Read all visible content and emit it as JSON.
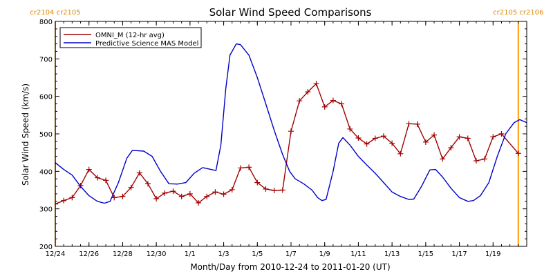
{
  "chart_data": {
    "type": "line",
    "title": "Solar Wind Speed Comparisons",
    "xlabel": "Month/Day from 2010-12-24 to 2011-01-20 (UT)",
    "ylabel": "Solar Wind Speed (km/s)",
    "xlim": [
      "2010-12-24T00:00",
      "2011-01-21T00:00"
    ],
    "ylim": [
      200,
      800
    ],
    "x_tick_labels": [
      {
        "label": "12/24",
        "date": "2010-12-24"
      },
      {
        "label": "12/26",
        "date": "2010-12-26"
      },
      {
        "label": "12/28",
        "date": "2010-12-28"
      },
      {
        "label": "12/30",
        "date": "2010-12-30"
      },
      {
        "label": "1/1",
        "date": "2011-01-01"
      },
      {
        "label": "1/3",
        "date": "2011-01-03"
      },
      {
        "label": "1/5",
        "date": "2011-01-05"
      },
      {
        "label": "1/7",
        "date": "2011-01-07"
      },
      {
        "label": "1/9",
        "date": "2011-01-09"
      },
      {
        "label": "1/11",
        "date": "2011-01-11"
      },
      {
        "label": "1/13",
        "date": "2011-01-13"
      },
      {
        "label": "1/15",
        "date": "2011-01-15"
      },
      {
        "label": "1/17",
        "date": "2011-01-17"
      },
      {
        "label": "1/19",
        "date": "2011-01-19"
      }
    ],
    "y_ticks": [
      200,
      300,
      400,
      500,
      600,
      700,
      800
    ],
    "legend_position": "top-left",
    "grid": false,
    "carrington_markers": [
      {
        "date": "2010-12-24T00:00",
        "label": "cr2104 cr2105"
      },
      {
        "date": "2011-01-20T12:00",
        "label": "cr2105 cr2106"
      }
    ],
    "series": [
      {
        "name": "OMNI_M (12-hr avg)",
        "color": "#a00000",
        "marker": "plus",
        "points": [
          [
            "2010-12-24T00:00",
            313
          ],
          [
            "2010-12-24T12:00",
            322
          ],
          [
            "2010-12-25T00:00",
            330
          ],
          [
            "2010-12-25T12:00",
            362
          ],
          [
            "2010-12-26T00:00",
            405
          ],
          [
            "2010-12-26T12:00",
            383
          ],
          [
            "2010-12-27T00:00",
            376
          ],
          [
            "2010-12-27T12:00",
            330
          ],
          [
            "2010-12-28T00:00",
            333
          ],
          [
            "2010-12-28T12:00",
            357
          ],
          [
            "2010-12-29T00:00",
            396
          ],
          [
            "2010-12-29T12:00",
            367
          ],
          [
            "2010-12-30T00:00",
            327
          ],
          [
            "2010-12-30T12:00",
            342
          ],
          [
            "2010-12-31T00:00",
            347
          ],
          [
            "2010-12-31T12:00",
            333
          ],
          [
            "2011-01-01T00:00",
            340
          ],
          [
            "2011-01-01T12:00",
            316
          ],
          [
            "2011-01-02T00:00",
            333
          ],
          [
            "2011-01-02T12:00",
            345
          ],
          [
            "2011-01-03T00:00",
            339
          ],
          [
            "2011-01-03T12:00",
            351
          ],
          [
            "2011-01-04T00:00",
            409
          ],
          [
            "2011-01-04T12:00",
            411
          ],
          [
            "2011-01-05T00:00",
            370
          ],
          [
            "2011-01-05T12:00",
            353
          ],
          [
            "2011-01-06T00:00",
            349
          ],
          [
            "2011-01-06T12:00",
            350
          ],
          [
            "2011-01-07T00:00",
            507
          ],
          [
            "2011-01-07T12:00",
            588
          ],
          [
            "2011-01-08T00:00",
            612
          ],
          [
            "2011-01-08T12:00",
            634
          ],
          [
            "2011-01-09T00:00",
            572
          ],
          [
            "2011-01-09T12:00",
            589
          ],
          [
            "2011-01-10T00:00",
            580
          ],
          [
            "2011-01-10T12:00",
            513
          ],
          [
            "2011-01-11T00:00",
            489
          ],
          [
            "2011-01-11T12:00",
            473
          ],
          [
            "2011-01-12T00:00",
            488
          ],
          [
            "2011-01-12T12:00",
            494
          ],
          [
            "2011-01-13T00:00",
            475
          ],
          [
            "2011-01-13T12:00",
            447
          ],
          [
            "2011-01-14T00:00",
            527
          ],
          [
            "2011-01-14T12:00",
            526
          ],
          [
            "2011-01-15T00:00",
            478
          ],
          [
            "2011-01-15T12:00",
            497
          ],
          [
            "2011-01-16T00:00",
            433
          ],
          [
            "2011-01-16T12:00",
            463
          ],
          [
            "2011-01-17T00:00",
            492
          ],
          [
            "2011-01-17T12:00",
            488
          ],
          [
            "2011-01-18T00:00",
            428
          ],
          [
            "2011-01-18T12:00",
            433
          ],
          [
            "2011-01-19T00:00",
            492
          ],
          [
            "2011-01-19T12:00",
            500
          ],
          [
            "2011-01-20T12:00",
            448
          ]
        ]
      },
      {
        "name": "Predictive Science MAS Model",
        "color": "#0000c8",
        "marker": "none",
        "points": [
          [
            "2010-12-24T00:00",
            423
          ],
          [
            "2010-12-24T12:00",
            405
          ],
          [
            "2010-12-25T00:00",
            390
          ],
          [
            "2010-12-25T12:00",
            360
          ],
          [
            "2010-12-26T00:00",
            335
          ],
          [
            "2010-12-26T12:00",
            320
          ],
          [
            "2010-12-26T22:00",
            315
          ],
          [
            "2010-12-27T06:00",
            320
          ],
          [
            "2010-12-27T18:00",
            370
          ],
          [
            "2010-12-28T06:00",
            435
          ],
          [
            "2010-12-28T14:00",
            456
          ],
          [
            "2010-12-29T06:00",
            454
          ],
          [
            "2010-12-29T18:00",
            440
          ],
          [
            "2010-12-30T06:00",
            400
          ],
          [
            "2010-12-30T18:00",
            367
          ],
          [
            "2010-12-31T06:00",
            366
          ],
          [
            "2010-12-31T18:00",
            370
          ],
          [
            "2011-01-01T06:00",
            395
          ],
          [
            "2011-01-01T18:00",
            410
          ],
          [
            "2011-01-02T06:00",
            405
          ],
          [
            "2011-01-02T13:00",
            402
          ],
          [
            "2011-01-02T20:00",
            470
          ],
          [
            "2011-01-03T03:00",
            620
          ],
          [
            "2011-01-03T09:00",
            710
          ],
          [
            "2011-01-03T18:00",
            740
          ],
          [
            "2011-01-04T00:00",
            738
          ],
          [
            "2011-01-04T12:00",
            710
          ],
          [
            "2011-01-05T00:00",
            650
          ],
          [
            "2011-01-05T12:00",
            580
          ],
          [
            "2011-01-06T00:00",
            510
          ],
          [
            "2011-01-06T12:00",
            445
          ],
          [
            "2011-01-06T22:00",
            400
          ],
          [
            "2011-01-07T06:00",
            380
          ],
          [
            "2011-01-07T18:00",
            367
          ],
          [
            "2011-01-08T06:00",
            350
          ],
          [
            "2011-01-08T14:00",
            330
          ],
          [
            "2011-01-08T20:00",
            322
          ],
          [
            "2011-01-09T02:00",
            325
          ],
          [
            "2011-01-09T12:00",
            400
          ],
          [
            "2011-01-09T20:00",
            475
          ],
          [
            "2011-01-10T02:00",
            490
          ],
          [
            "2011-01-10T12:00",
            470
          ],
          [
            "2011-01-11T00:00",
            440
          ],
          [
            "2011-01-11T12:00",
            417
          ],
          [
            "2011-01-12T00:00",
            395
          ],
          [
            "2011-01-12T12:00",
            370
          ],
          [
            "2011-01-13T00:00",
            345
          ],
          [
            "2011-01-13T12:00",
            333
          ],
          [
            "2011-01-14T00:00",
            325
          ],
          [
            "2011-01-14T07:00",
            326
          ],
          [
            "2011-01-14T18:00",
            360
          ],
          [
            "2011-01-15T06:00",
            404
          ],
          [
            "2011-01-15T14:00",
            405
          ],
          [
            "2011-01-16T00:00",
            385
          ],
          [
            "2011-01-16T12:00",
            355
          ],
          [
            "2011-01-17T00:00",
            330
          ],
          [
            "2011-01-17T12:00",
            320
          ],
          [
            "2011-01-17T20:00",
            322
          ],
          [
            "2011-01-18T06:00",
            335
          ],
          [
            "2011-01-18T18:00",
            370
          ],
          [
            "2011-01-19T06:00",
            440
          ],
          [
            "2011-01-19T18:00",
            500
          ],
          [
            "2011-01-20T06:00",
            530
          ],
          [
            "2011-01-20T14:00",
            538
          ],
          [
            "2011-01-21T00:00",
            530
          ],
          [
            "2011-01-21T06:00",
            510
          ]
        ]
      }
    ]
  }
}
